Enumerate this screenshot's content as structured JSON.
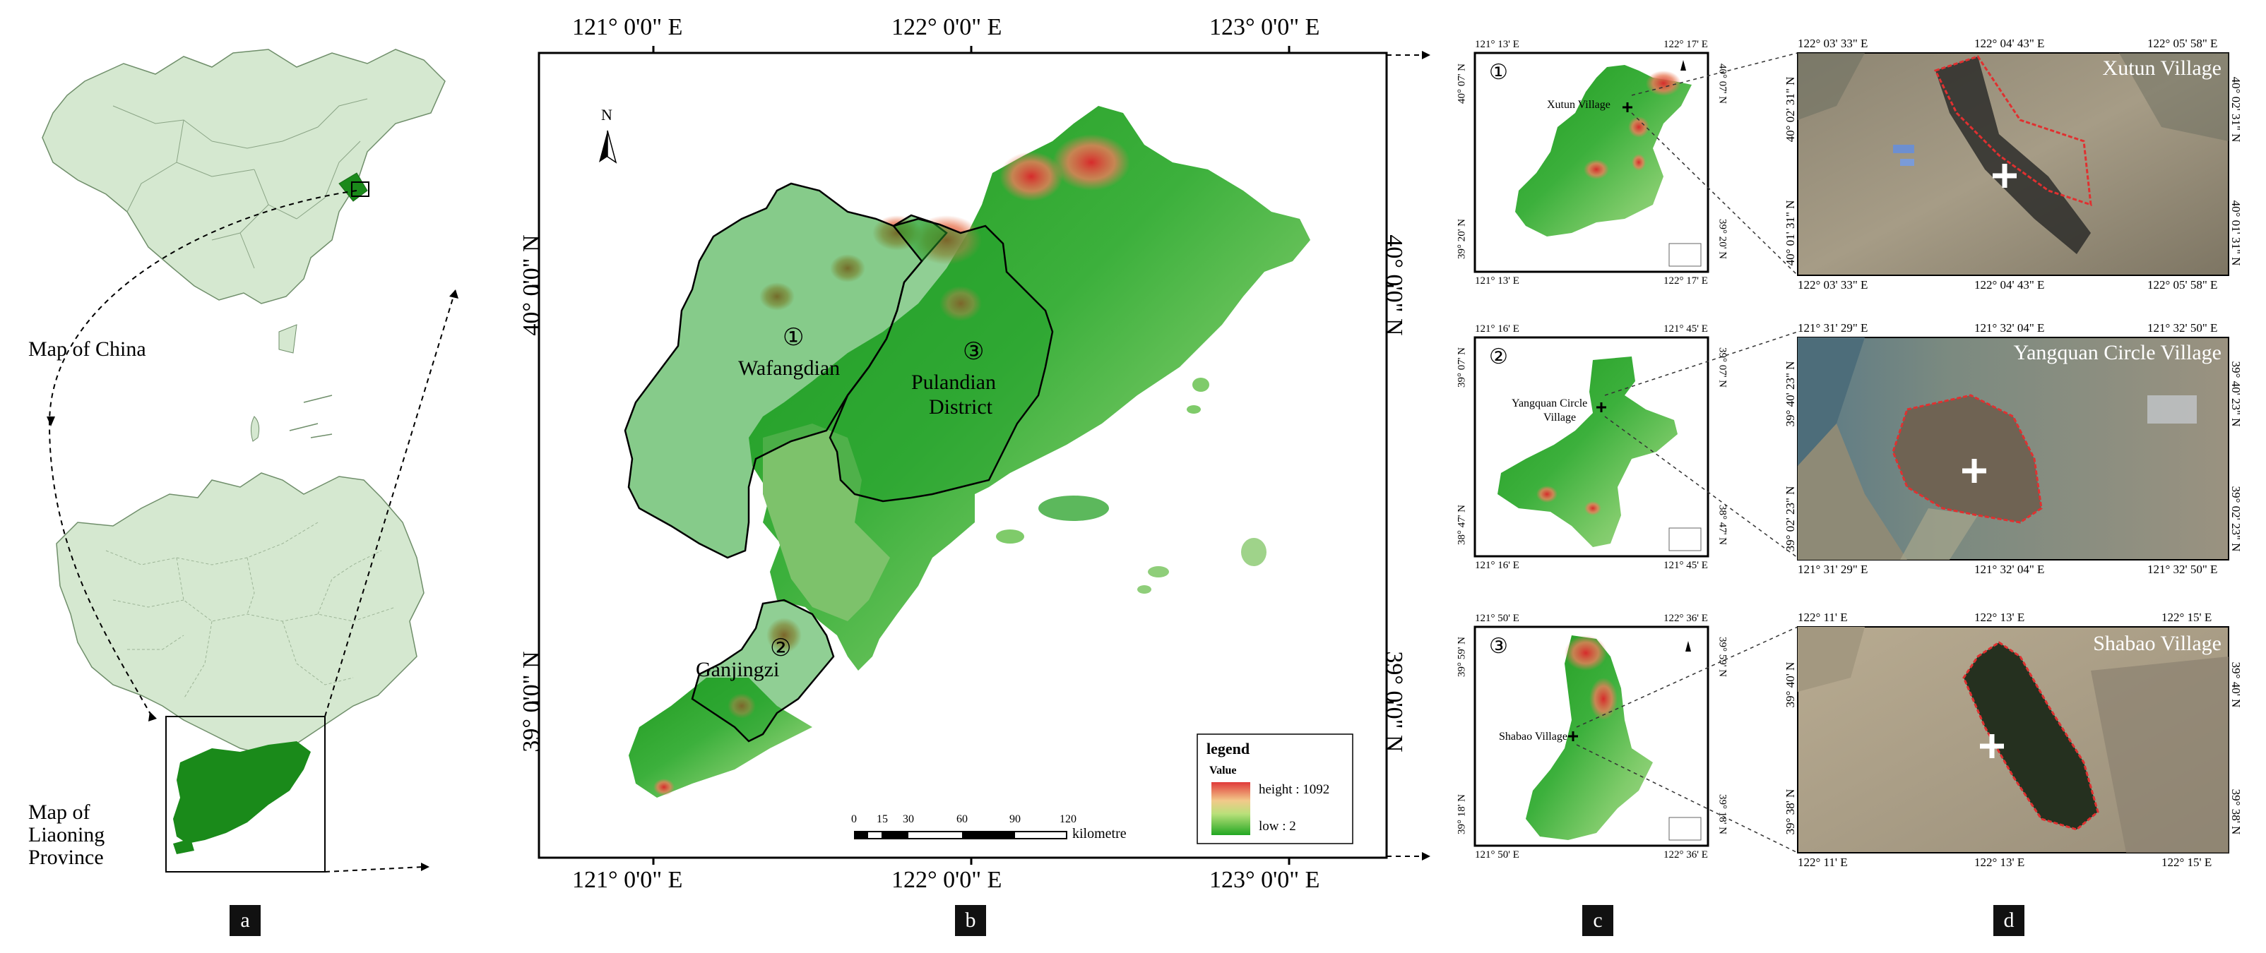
{
  "panel_a": {
    "china_label": "Map of China",
    "liaoning_label": [
      "Map of",
      "Liaoning",
      "Province"
    ],
    "badge": "a"
  },
  "panel_b": {
    "top_ticks": [
      "121° 0'0\" E",
      "122° 0'0\" E",
      "123° 0'0\" E"
    ],
    "bottom_ticks": [
      "121° 0'0\" E",
      "122° 0'0\" E",
      "123° 0'0\" E"
    ],
    "left_ticks": [
      "40° 0'0\" N",
      "39° 0'0\" N"
    ],
    "right_ticks": [
      "40° 0'0\" N",
      "39° 0'0\" N"
    ],
    "north": "N",
    "districts": [
      {
        "num": "①",
        "name": "Wafangdian"
      },
      {
        "num": "③",
        "name": "Pulandian",
        "name2": "District"
      },
      {
        "num": "②",
        "name": "Ganjingzi"
      }
    ],
    "legend": {
      "title": "legend",
      "value_label": "Value",
      "high": "height : 1092",
      "low": "low : 2"
    },
    "scale": {
      "ticks": [
        "0",
        "15",
        "30",
        "60",
        "90",
        "120"
      ],
      "unit": "kilometre"
    },
    "badge": "b"
  },
  "panel_c": {
    "maps": [
      {
        "num": "①",
        "village": "Xutun Village",
        "top": [
          "121° 13' E",
          "122° 17' E"
        ],
        "bottom": [
          "121° 13' E",
          "122° 17' E"
        ],
        "left": [
          "40° 07' N",
          "39° 20' N"
        ],
        "right": [
          "40° 07' N",
          "39° 20' N"
        ]
      },
      {
        "num": "②",
        "village": "Yangquan Circle",
        "village2": "Village",
        "top": [
          "121° 16' E",
          "121° 45' E"
        ],
        "bottom": [
          "121° 16' E",
          "121° 45' E"
        ],
        "left": [
          "39° 07' N",
          "38° 47' N"
        ],
        "right": [
          "39° 07' N",
          "38° 47' N"
        ]
      },
      {
        "num": "③",
        "village": "Shabao Village",
        "top": [
          "121° 50' E",
          "122° 36' E"
        ],
        "bottom": [
          "121° 50' E",
          "122° 36' E"
        ],
        "left": [
          "39° 59' N",
          "39° 18' N"
        ],
        "right": [
          "39° 59' N",
          "39° 18' N"
        ]
      }
    ],
    "badge": "c"
  },
  "panel_d": {
    "images": [
      {
        "title": "Xutun Village",
        "top": [
          "122° 03' 33\" E",
          "122° 04' 43\" E",
          "122° 05' 58\" E"
        ],
        "bottom": [
          "122° 03' 33\" E",
          "122° 04' 43\" E",
          "122° 05' 58\" E"
        ],
        "left": [
          "40° 02' 31\" N",
          "40° 01' 31\" N"
        ],
        "right": [
          "40° 02' 31\" N",
          "40° 01' 31\" N"
        ]
      },
      {
        "title": "Yangquan Circle Village",
        "top": [
          "121° 31' 29\" E",
          "121° 32' 04\" E",
          "121° 32' 50\" E"
        ],
        "bottom": [
          "121° 31' 29\" E",
          "121° 32' 04\" E",
          "121° 32' 50\" E"
        ],
        "left": [
          "39° 40' 23\" N",
          "39° 02' 23\" N"
        ],
        "right": [
          "39° 40' 23\" N",
          "39° 02' 23\" N"
        ]
      },
      {
        "title": "Shabao Village",
        "top": [
          "122° 11' E",
          "122° 13' E",
          "122° 15' E"
        ],
        "bottom": [
          "122° 11' E",
          "122° 13' E",
          "122° 15' E"
        ],
        "left": [
          "39° 40' N",
          "39° 38' N"
        ],
        "right": [
          "39° 40' N",
          "39° 38' N"
        ]
      }
    ],
    "badge": "d"
  },
  "colors": {
    "province_fill": "#d5e8d0",
    "dalian_green": "#1a8a1a",
    "dem_low": "#22a722",
    "dem_high": "#e04040",
    "boundary_red": "#e03030"
  }
}
